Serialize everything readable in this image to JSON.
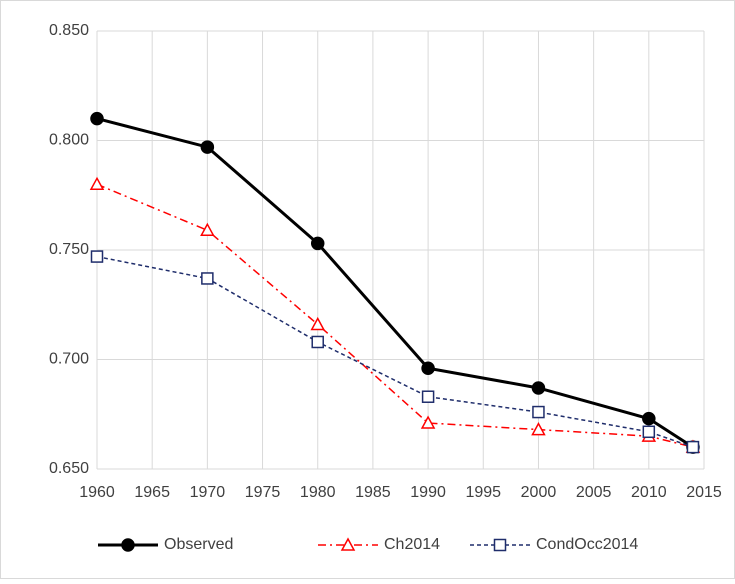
{
  "chart_data": {
    "type": "line",
    "x": [
      1960,
      1970,
      1980,
      1990,
      2000,
      2010,
      2014
    ],
    "series": [
      {
        "name": "Observed",
        "color": "#000000",
        "line_style": "solid",
        "marker": "circle",
        "values": [
          0.81,
          0.797,
          0.753,
          0.696,
          0.687,
          0.673,
          0.66
        ]
      },
      {
        "name": "Ch2014",
        "color": "#ff0000",
        "line_style": "dashdot",
        "marker": "triangle",
        "values": [
          0.78,
          0.759,
          0.716,
          0.671,
          0.668,
          0.665,
          0.66
        ]
      },
      {
        "name": "CondOcc2014",
        "color": "#1f2d6b",
        "line_style": "dashed",
        "marker": "square",
        "values": [
          0.747,
          0.737,
          0.708,
          0.683,
          0.676,
          0.667,
          0.66
        ]
      }
    ],
    "xlim": [
      1960,
      2015
    ],
    "xticks": [
      1960,
      1965,
      1970,
      1975,
      1980,
      1985,
      1990,
      1995,
      2000,
      2005,
      2010,
      2015
    ],
    "ylim": [
      0.65,
      0.85
    ],
    "yticks": [
      {
        "value": 0.65,
        "label": "0.650"
      },
      {
        "value": 0.7,
        "label": "0.700"
      },
      {
        "value": 0.75,
        "label": "0.750"
      },
      {
        "value": 0.8,
        "label": "0.800"
      },
      {
        "value": 0.85,
        "label": "0.850"
      }
    ],
    "grid": true,
    "legend": "bottom"
  }
}
